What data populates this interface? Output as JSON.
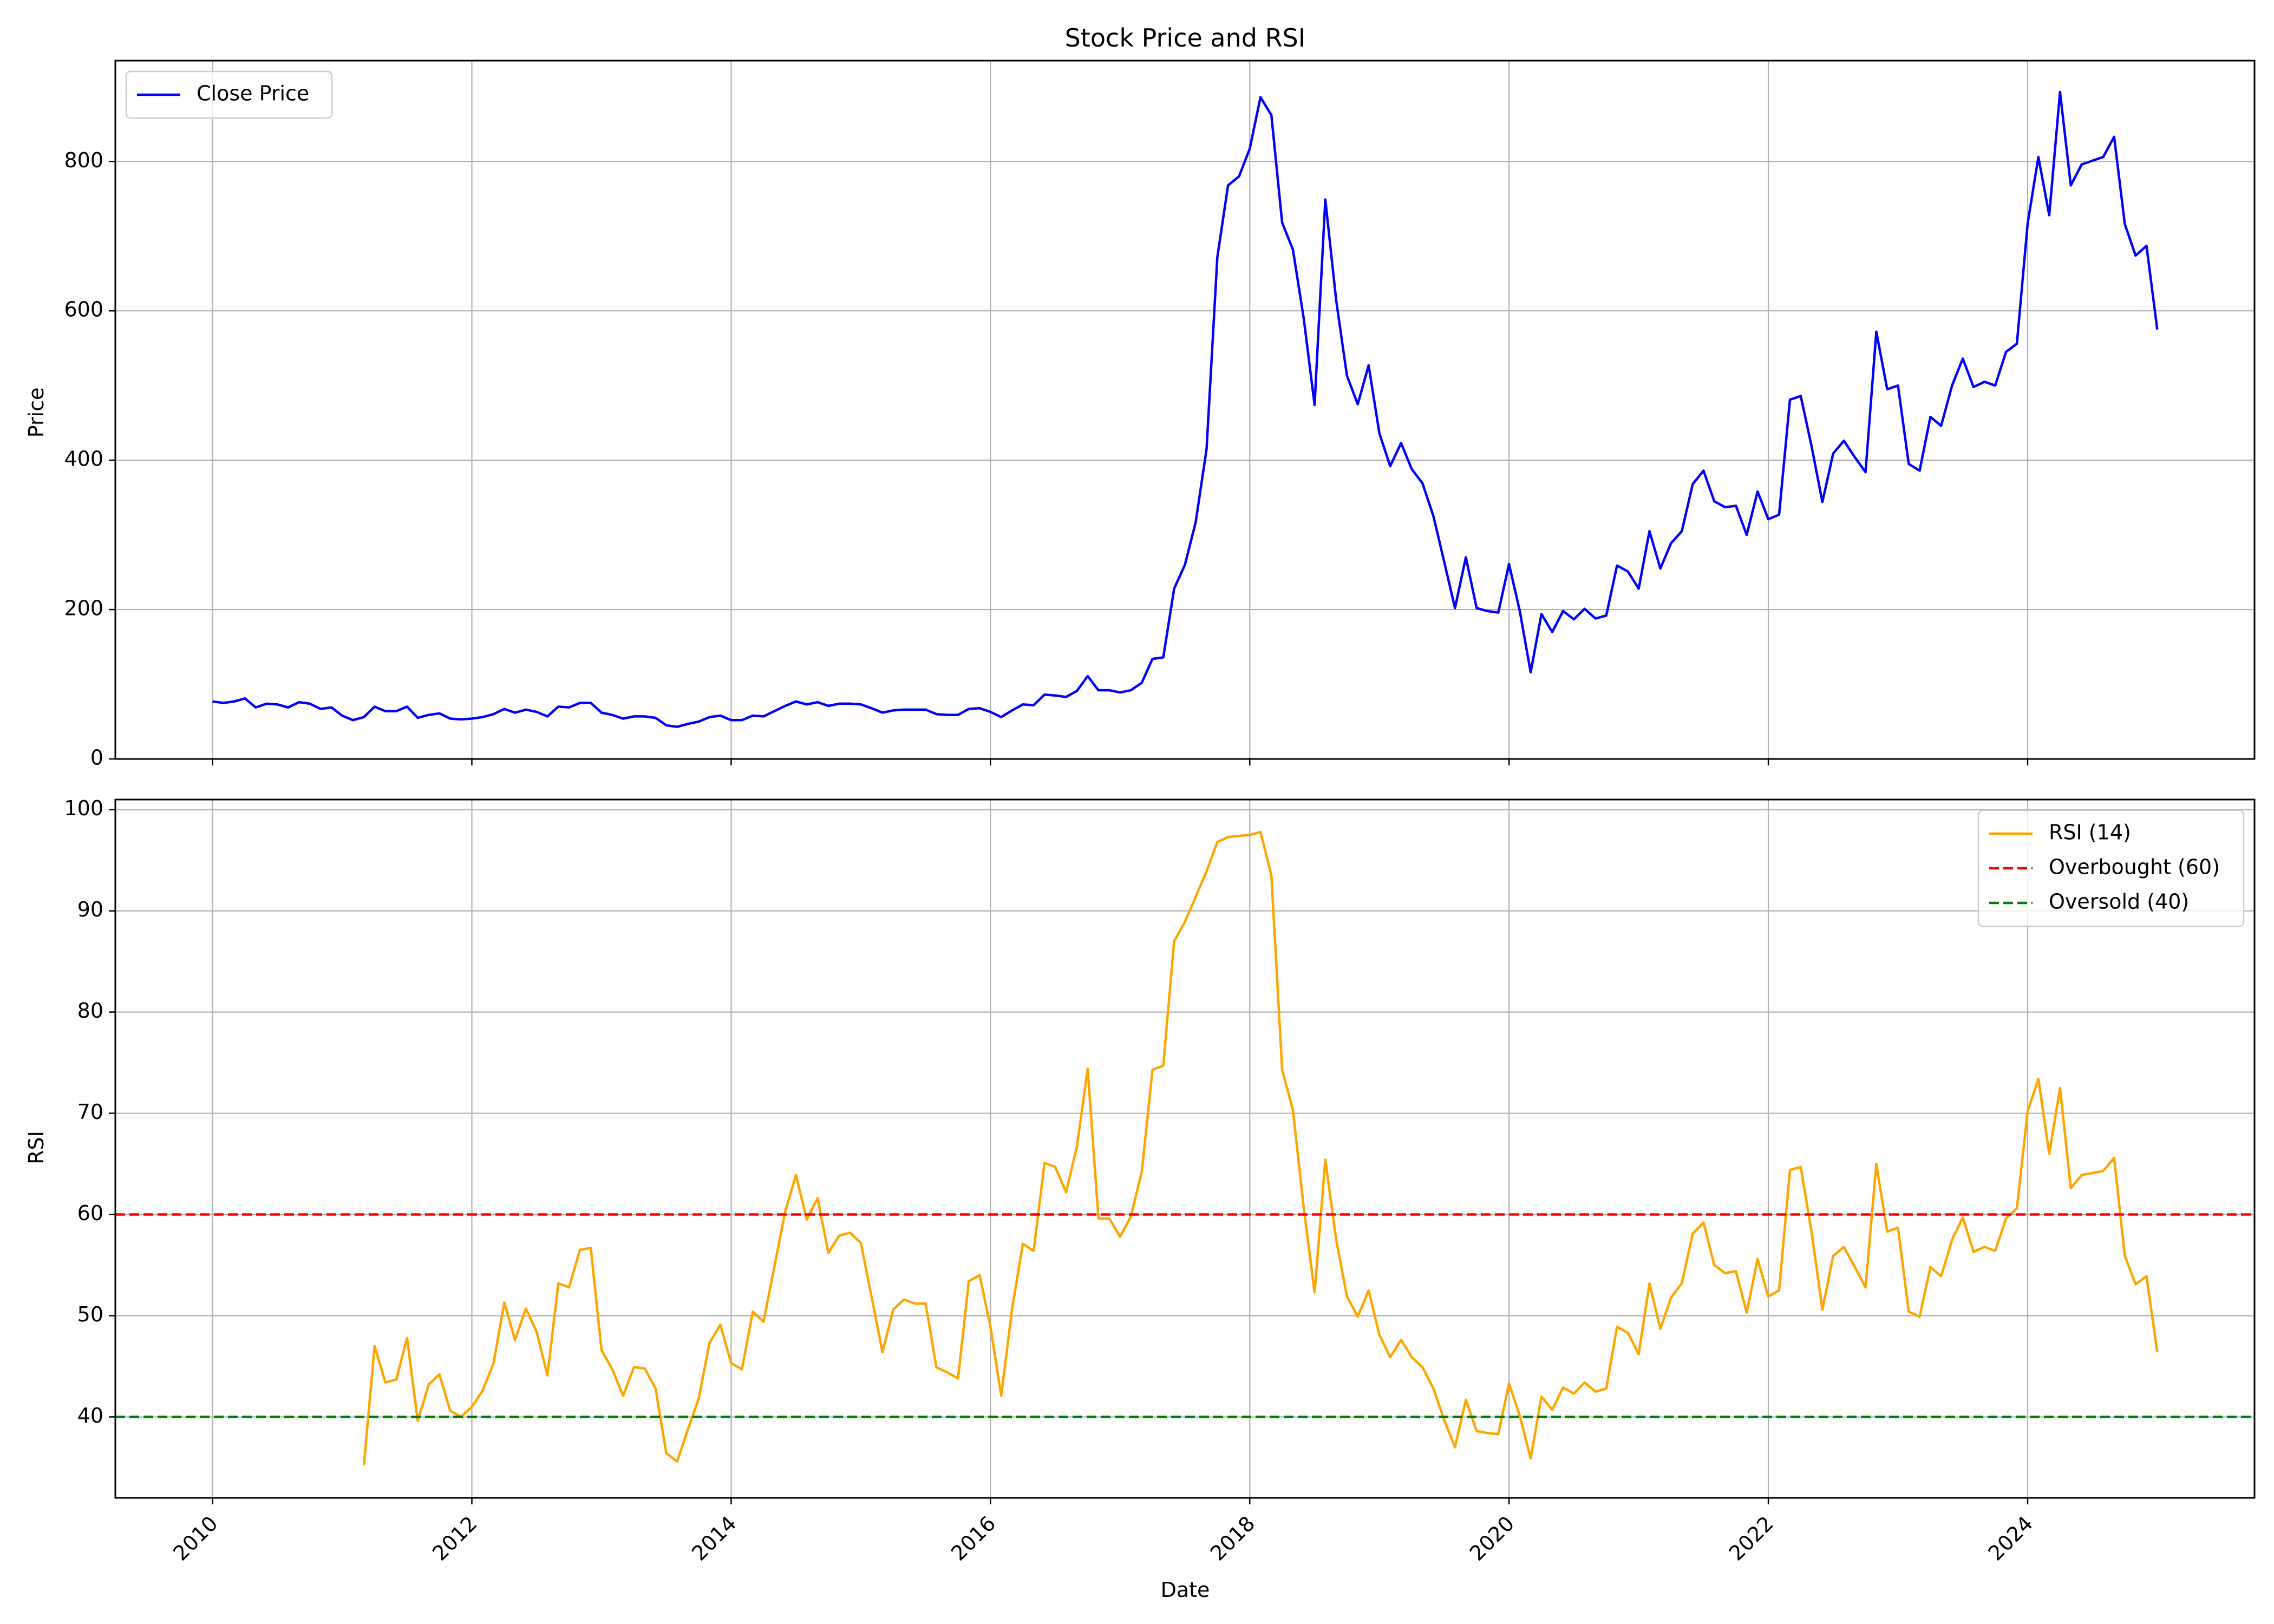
{
  "chart_data": [
    {
      "type": "line",
      "title": "Stock Price and RSI",
      "xlabel": "",
      "ylabel": "Price",
      "xlim": [
        2009.25,
        2025.75
      ],
      "ylim": [
        0,
        935
      ],
      "yticks": [
        0,
        200,
        400,
        600,
        800
      ],
      "xticks": [
        2010,
        2012,
        2014,
        2016,
        2018,
        2020,
        2022,
        2024
      ],
      "grid": true,
      "legend": "top-left",
      "series": [
        {
          "name": "Close Price",
          "color": "#0000ff",
          "x": [
            2010.0,
            2010.083,
            2010.167,
            2010.25,
            2010.333,
            2010.417,
            2010.5,
            2010.583,
            2010.667,
            2010.75,
            2010.833,
            2010.917,
            2011.0,
            2011.083,
            2011.167,
            2011.25,
            2011.333,
            2011.417,
            2011.5,
            2011.583,
            2011.667,
            2011.75,
            2011.833,
            2011.917,
            2012.0,
            2012.083,
            2012.167,
            2012.25,
            2012.333,
            2012.417,
            2012.5,
            2012.583,
            2012.667,
            2012.75,
            2012.833,
            2012.917,
            2013.0,
            2013.083,
            2013.167,
            2013.25,
            2013.333,
            2013.417,
            2013.5,
            2013.583,
            2013.667,
            2013.75,
            2013.833,
            2013.917,
            2014.0,
            2014.083,
            2014.167,
            2014.25,
            2014.333,
            2014.417,
            2014.5,
            2014.583,
            2014.667,
            2014.75,
            2014.833,
            2014.917,
            2015.0,
            2015.083,
            2015.167,
            2015.25,
            2015.333,
            2015.417,
            2015.5,
            2015.583,
            2015.667,
            2015.75,
            2015.833,
            2015.917,
            2016.0,
            2016.083,
            2016.167,
            2016.25,
            2016.333,
            2016.417,
            2016.5,
            2016.583,
            2016.667,
            2016.75,
            2016.833,
            2016.917,
            2017.0,
            2017.083,
            2017.167,
            2017.25,
            2017.333,
            2017.417,
            2017.5,
            2017.583,
            2017.667,
            2017.75,
            2017.833,
            2017.917,
            2018.0,
            2018.083,
            2018.167,
            2018.25,
            2018.333,
            2018.417,
            2018.5,
            2018.583,
            2018.667,
            2018.75,
            2018.833,
            2018.917,
            2019.0,
            2019.083,
            2019.167,
            2019.25,
            2019.333,
            2019.417,
            2019.5,
            2019.583,
            2019.667,
            2019.75,
            2019.833,
            2019.917,
            2020.0,
            2020.083,
            2020.167,
            2020.25,
            2020.333,
            2020.417,
            2020.5,
            2020.583,
            2020.667,
            2020.75,
            2020.833,
            2020.917,
            2021.0,
            2021.083,
            2021.167,
            2021.25,
            2021.333,
            2021.417,
            2021.5,
            2021.583,
            2021.667,
            2021.75,
            2021.833,
            2021.917,
            2022.0,
            2022.083,
            2022.167,
            2022.25,
            2022.333,
            2022.417,
            2022.5,
            2022.583,
            2022.667,
            2022.75,
            2022.833,
            2022.917,
            2023.0,
            2023.083,
            2023.167,
            2023.25,
            2023.333,
            2023.417,
            2023.5,
            2023.583,
            2023.667,
            2023.75,
            2023.833,
            2023.917,
            2024.0,
            2024.083,
            2024.167,
            2024.25,
            2024.333,
            2024.417,
            2024.5,
            2024.583,
            2024.667,
            2024.75,
            2024.833,
            2024.917,
            2025.0
          ],
          "values": [
            77,
            75,
            77,
            81,
            69,
            74,
            73,
            69,
            76,
            74,
            67,
            69,
            58,
            52,
            56,
            70,
            64,
            64,
            70,
            55,
            59,
            61,
            54,
            53,
            54,
            56,
            60,
            67,
            62,
            66,
            63,
            57,
            70,
            69,
            75,
            75,
            62,
            59,
            54,
            57,
            57,
            55,
            45,
            43,
            47,
            50,
            56,
            58,
            52,
            52,
            58,
            57,
            64,
            71,
            77,
            73,
            76,
            71,
            74,
            74,
            73,
            68,
            62,
            65,
            66,
            66,
            66,
            60,
            59,
            59,
            67,
            68,
            63,
            56,
            65,
            73,
            72,
            86,
            85,
            83,
            91,
            111,
            92,
            92,
            89,
            92,
            102,
            134,
            136,
            228,
            260,
            317,
            415,
            672,
            768,
            780,
            817,
            886,
            862,
            718,
            682,
            589,
            474,
            749,
            614,
            513,
            475,
            527,
            436,
            392,
            423,
            388,
            369,
            325,
            264,
            202,
            270,
            202,
            198,
            196,
            261,
            198,
            116,
            194,
            170,
            198,
            187,
            201,
            188,
            192,
            259,
            251,
            228,
            305,
            255,
            289,
            305,
            368,
            386,
            345,
            337,
            339,
            300,
            358,
            321,
            327,
            481,
            486,
            419,
            344,
            409,
            426,
            404,
            384,
            572,
            495,
            500,
            395,
            386,
            458,
            446,
            500,
            536,
            498,
            505,
            500,
            545,
            556,
            717,
            806,
            728,
            893,
            768,
            796,
            801,
            806,
            833,
            716,
            674,
            687,
            575
          ]
        }
      ]
    },
    {
      "type": "line",
      "title": "",
      "xlabel": "Date",
      "ylabel": "RSI",
      "xlim": [
        2009.25,
        2025.75
      ],
      "ylim": [
        32,
        101
      ],
      "yticks": [
        40,
        50,
        60,
        70,
        80,
        90,
        100
      ],
      "xticks": [
        2010,
        2012,
        2014,
        2016,
        2018,
        2020,
        2022,
        2024
      ],
      "xtick_labels": [
        "2010",
        "2012",
        "2014",
        "2016",
        "2018",
        "2020",
        "2022",
        "2024"
      ],
      "grid": true,
      "legend": "top-right",
      "series": [
        {
          "name": "RSI (14)",
          "color": "#ffa500",
          "x": [
            2011.167,
            2011.25,
            2011.333,
            2011.417,
            2011.5,
            2011.583,
            2011.667,
            2011.75,
            2011.833,
            2011.917,
            2012.0,
            2012.083,
            2012.167,
            2012.25,
            2012.333,
            2012.417,
            2012.5,
            2012.583,
            2012.667,
            2012.75,
            2012.833,
            2012.917,
            2013.0,
            2013.083,
            2013.167,
            2013.25,
            2013.333,
            2013.417,
            2013.5,
            2013.583,
            2013.667,
            2013.75,
            2013.833,
            2013.917,
            2014.0,
            2014.083,
            2014.167,
            2014.25,
            2014.333,
            2014.417,
            2014.5,
            2014.583,
            2014.667,
            2014.75,
            2014.833,
            2014.917,
            2015.0,
            2015.083,
            2015.167,
            2015.25,
            2015.333,
            2015.417,
            2015.5,
            2015.583,
            2015.667,
            2015.75,
            2015.833,
            2015.917,
            2016.0,
            2016.083,
            2016.167,
            2016.25,
            2016.333,
            2016.417,
            2016.5,
            2016.583,
            2016.667,
            2016.75,
            2016.833,
            2016.917,
            2017.0,
            2017.083,
            2017.167,
            2017.25,
            2017.333,
            2017.417,
            2017.5,
            2017.583,
            2017.667,
            2017.75,
            2017.833,
            2017.917,
            2018.0,
            2018.083,
            2018.167,
            2018.25,
            2018.333,
            2018.417,
            2018.5,
            2018.583,
            2018.667,
            2018.75,
            2018.833,
            2018.917,
            2019.0,
            2019.083,
            2019.167,
            2019.25,
            2019.333,
            2019.417,
            2019.5,
            2019.583,
            2019.667,
            2019.75,
            2019.833,
            2019.917,
            2020.0,
            2020.083,
            2020.167,
            2020.25,
            2020.333,
            2020.417,
            2020.5,
            2020.583,
            2020.667,
            2020.75,
            2020.833,
            2020.917,
            2021.0,
            2021.083,
            2021.167,
            2021.25,
            2021.333,
            2021.417,
            2021.5,
            2021.583,
            2021.667,
            2021.75,
            2021.833,
            2021.917,
            2022.0,
            2022.083,
            2022.167,
            2022.25,
            2022.333,
            2022.417,
            2022.5,
            2022.583,
            2022.667,
            2022.75,
            2022.833,
            2022.917,
            2023.0,
            2023.083,
            2023.167,
            2023.25,
            2023.333,
            2023.417,
            2023.5,
            2023.583,
            2023.667,
            2023.75,
            2023.833,
            2023.917,
            2024.0,
            2024.083,
            2024.167,
            2024.25,
            2024.333,
            2024.417,
            2024.5,
            2024.583,
            2024.667,
            2024.75,
            2024.833,
            2024.917,
            2025.0
          ],
          "values": [
            35.2,
            47,
            43.4,
            43.7,
            47.8,
            39.6,
            43.2,
            44.2,
            40.6,
            40,
            41,
            42.6,
            45.3,
            51.3,
            47.6,
            50.7,
            48.4,
            44.1,
            53.2,
            52.8,
            56.5,
            56.7,
            46.6,
            44.7,
            42.1,
            44.9,
            44.8,
            42.8,
            36.4,
            35.6,
            38.8,
            41.8,
            47.3,
            49.1,
            45.3,
            44.7,
            50.4,
            49.4,
            54.8,
            60.3,
            63.9,
            59.5,
            61.6,
            56.2,
            57.9,
            58.2,
            57.2,
            51.9,
            46.4,
            50.6,
            51.6,
            51.2,
            51.2,
            44.9,
            44.4,
            43.8,
            53.4,
            54,
            48.9,
            42.1,
            50.7,
            57.1,
            56.4,
            65.1,
            64.7,
            62.2,
            66.7,
            74.4,
            59.6,
            59.6,
            57.8,
            59.8,
            64.2,
            74.3,
            74.7,
            87,
            88.9,
            91.4,
            93.9,
            96.8,
            97.3,
            97.4,
            97.5,
            97.8,
            93.5,
            74.3,
            70.3,
            60.6,
            52.3,
            65.4,
            57.5,
            51.9,
            49.9,
            52.5,
            48.1,
            45.9,
            47.6,
            45.9,
            44.9,
            42.8,
            39.7,
            37,
            41.7,
            38.6,
            38.4,
            38.3,
            43.3,
            40.1,
            35.9,
            42,
            40.7,
            42.9,
            42.3,
            43.4,
            42.5,
            42.8,
            48.9,
            48.3,
            46.2,
            53.2,
            48.7,
            51.8,
            53.2,
            58.1,
            59.2,
            55,
            54.2,
            54.4,
            50.3,
            55.6,
            51.9,
            52.5,
            64.4,
            64.7,
            58.3,
            50.6,
            55.9,
            56.8,
            54.8,
            52.8,
            65,
            58.3,
            58.7,
            50.4,
            49.9,
            54.8,
            53.9,
            57.5,
            59.7,
            56.3,
            56.8,
            56.4,
            59.6,
            60.6,
            70.2,
            73.4,
            66,
            72.5,
            62.6,
            63.9,
            64.1,
            64.3,
            65.6,
            55.9,
            53.1,
            53.9,
            46.4
          ]
        },
        {
          "name": "Overbought (60)",
          "color": "#ff0000",
          "style": "dashed",
          "x": [
            2009.25,
            2025.75
          ],
          "values": [
            60,
            60
          ]
        },
        {
          "name": "Oversold (40)",
          "color": "#008000",
          "style": "dashed",
          "x": [
            2009.25,
            2025.75
          ],
          "values": [
            40,
            40
          ]
        }
      ]
    }
  ]
}
